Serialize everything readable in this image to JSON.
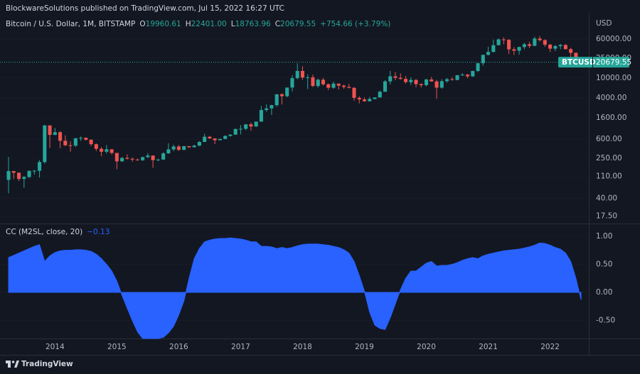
{
  "header": "BlockwareSolutions published on TradingView.com, Jul 15, 2022 16:27 UTC",
  "footer": "TradingView",
  "chart_data": [
    {
      "type": "candlestick",
      "title": "Bitcoin / U.S. Dollar, 1M, BITSTAMP",
      "legend": [
        {
          "label": "O",
          "value": "19960.61"
        },
        {
          "label": "H",
          "value": "22401.00"
        },
        {
          "label": "L",
          "value": "18763.96"
        },
        {
          "label": "C",
          "value": "20679.55"
        }
      ],
      "change": "+754.66 (+3.79%)",
      "axis_unit": "USD",
      "log_scale": true,
      "ylim": [
        12.5,
        200000
      ],
      "yticks": [
        {
          "value": 17.5,
          "label": "17.50"
        },
        {
          "value": 40,
          "label": "40.00"
        },
        {
          "value": 110,
          "label": "110.00"
        },
        {
          "value": 250,
          "label": "250.00"
        },
        {
          "value": 600,
          "label": "600.00"
        },
        {
          "value": 1600,
          "label": "1600.00"
        },
        {
          "value": 4000,
          "label": "4000.00"
        },
        {
          "value": 10000,
          "label": "10000.00"
        },
        {
          "value": 25000,
          "label": "25000.00"
        },
        {
          "value": 60000,
          "label": "60000.00"
        }
      ],
      "xlim": [
        -1.66,
        112.5
      ],
      "xticks": [
        {
          "value": 9,
          "label": "2014"
        },
        {
          "value": 21,
          "label": "2015"
        },
        {
          "value": 33,
          "label": "2016"
        },
        {
          "value": 45,
          "label": "2017"
        },
        {
          "value": 57,
          "label": "2018"
        },
        {
          "value": 69,
          "label": "2019"
        },
        {
          "value": 81,
          "label": "2020"
        },
        {
          "value": 93,
          "label": "2021"
        },
        {
          "value": 105,
          "label": "2022"
        }
      ],
      "up_color": "#26a69a",
      "down_color": "#ef5350",
      "last_price": {
        "symbol": "BTCUSD",
        "label": "20679.55",
        "value": 20679.55
      },
      "open": [
        93,
        139,
        129,
        97,
        106,
        141,
        141,
        211,
        1130,
        732,
        830,
        560,
        455,
        447,
        628,
        640,
        586,
        478,
        387,
        338,
        378,
        320,
        218,
        254,
        244,
        236,
        230,
        264,
        284,
        230,
        236,
        314,
        377,
        430,
        368,
        437,
        416,
        448,
        531,
        673,
        624,
        574,
        609,
        699,
        742,
        963,
        970,
        1190,
        1080,
        1348,
        2300,
        2480,
        2875,
        4735,
        4340,
        6450,
        9950,
        13850,
        10220,
        10330,
        6930,
        9240,
        7490,
        6390,
        7730,
        7030,
        6630,
        6370,
        4020,
        3740,
        3440,
        3810,
        4100,
        5320,
        8570,
        10820,
        10080,
        9590,
        8290,
        9150,
        7560,
        7190,
        9350,
        8540,
        6410,
        8630,
        9450,
        9140,
        11350,
        11650,
        10780,
        13790,
        19700,
        28990,
        33110,
        45140,
        58800,
        57720,
        37300,
        35040,
        41460,
        47100,
        43790,
        61300,
        56950,
        46210,
        38480,
        43190,
        45530,
        37630,
        31790,
        19960.61
      ],
      "high": [
        266,
        140,
        130,
        111,
        141,
        147,
        229,
        1163,
        1150,
        1010,
        870,
        720,
        545,
        635,
        680,
        660,
        600,
        495,
        420,
        460,
        380,
        320,
        265,
        300,
        260,
        248,
        268,
        318,
        285,
        245,
        330,
        500,
        465,
        463,
        440,
        440,
        468,
        550,
        775,
        704,
        630,
        617,
        715,
        755,
        975,
        1150,
        1200,
        1290,
        1350,
        2760,
        2990,
        2920,
        4760,
        4970,
        6470,
        11400,
        19670,
        17180,
        11780,
        11680,
        9750,
        10020,
        7760,
        8500,
        7760,
        7410,
        7670,
        6590,
        4320,
        4090,
        4200,
        4110,
        5630,
        9070,
        13880,
        13200,
        12320,
        10920,
        10370,
        9510,
        7750,
        9580,
        10500,
        9190,
        9460,
        10060,
        10380,
        11450,
        12480,
        12090,
        14100,
        19900,
        29300,
        41950,
        58350,
        61780,
        64900,
        59600,
        41330,
        42320,
        50500,
        52920,
        67000,
        69000,
        59050,
        47990,
        45820,
        48200,
        47450,
        40000,
        31990,
        22401
      ],
      "low": [
        50,
        97,
        88,
        65,
        101,
        118,
        104,
        196,
        400,
        730,
        400,
        440,
        340,
        420,
        555,
        565,
        445,
        350,
        275,
        310,
        300,
        152,
        212,
        236,
        213,
        225,
        220,
        253,
        162,
        220,
        236,
        308,
        347,
        352,
        365,
        400,
        412,
        436,
        530,
        610,
        480,
        570,
        600,
        680,
        740,
        750,
        915,
        890,
        1060,
        1345,
        2120,
        1830,
        2670,
        2970,
        4110,
        5380,
        9400,
        9200,
        6000,
        6600,
        6430,
        7050,
        5750,
        6070,
        5880,
        6100,
        6200,
        3500,
        3120,
        3350,
        3380,
        3720,
        4080,
        5320,
        7460,
        9070,
        9320,
        7730,
        7300,
        6520,
        6430,
        6850,
        8450,
        3850,
        6150,
        8120,
        8900,
        8990,
        10980,
        9880,
        10520,
        13200,
        17580,
        28130,
        32300,
        44950,
        47000,
        30000,
        28800,
        29280,
        37330,
        39600,
        43280,
        53250,
        42000,
        32930,
        34320,
        37150,
        37380,
        25400,
        17590,
        18763.96
      ],
      "close": [
        139,
        129,
        97,
        106,
        141,
        141,
        211,
        1130,
        732,
        830,
        560,
        455,
        447,
        628,
        640,
        586,
        478,
        387,
        338,
        378,
        320,
        218,
        254,
        244,
        236,
        230,
        264,
        284,
        230,
        236,
        314,
        377,
        430,
        368,
        437,
        416,
        448,
        531,
        673,
        624,
        574,
        609,
        699,
        742,
        963,
        970,
        1190,
        1080,
        1348,
        2300,
        2480,
        2875,
        4735,
        4340,
        6450,
        9950,
        13850,
        10220,
        10330,
        6930,
        9240,
        7490,
        6390,
        7730,
        7030,
        6630,
        6370,
        4020,
        3740,
        3440,
        3810,
        4100,
        5320,
        8570,
        10820,
        10080,
        9590,
        8290,
        9150,
        7560,
        7190,
        9350,
        8540,
        6410,
        8630,
        9450,
        9140,
        11350,
        11650,
        10780,
        13790,
        19700,
        28990,
        33110,
        45140,
        58800,
        57720,
        37300,
        35040,
        41460,
        47100,
        43790,
        61300,
        56950,
        46210,
        38480,
        43190,
        45530,
        37630,
        31790,
        19930,
        20679.55
      ]
    },
    {
      "type": "area",
      "title": "CC (M2SL, close, 20)",
      "last_label": "−0.13",
      "color": "#2962ff",
      "ylim": [
        -0.82,
        1.2
      ],
      "yticks": [
        {
          "value": 1,
          "label": "1.00"
        },
        {
          "value": 0.5,
          "label": "0.50"
        },
        {
          "value": 0,
          "label": "0.00"
        },
        {
          "value": -0.5,
          "label": "-0.50"
        }
      ],
      "xlim": [
        -1.66,
        112.5
      ],
      "values": [
        0.62,
        0.66,
        0.7,
        0.74,
        0.78,
        0.82,
        0.85,
        0.55,
        0.65,
        0.71,
        0.74,
        0.75,
        0.75,
        0.76,
        0.76,
        0.75,
        0.73,
        0.68,
        0.6,
        0.5,
        0.38,
        0.2,
        -0.05,
        -0.28,
        -0.5,
        -0.7,
        -0.82,
        -0.82,
        -0.82,
        -0.82,
        -0.8,
        -0.72,
        -0.6,
        -0.4,
        -0.15,
        0.25,
        0.6,
        0.78,
        0.9,
        0.93,
        0.95,
        0.96,
        0.96,
        0.97,
        0.96,
        0.95,
        0.93,
        0.9,
        0.9,
        0.82,
        0.82,
        0.81,
        0.78,
        0.8,
        0.78,
        0.8,
        0.83,
        0.85,
        0.86,
        0.86,
        0.86,
        0.85,
        0.84,
        0.82,
        0.8,
        0.76,
        0.7,
        0.55,
        0.3,
        0.02,
        -0.35,
        -0.58,
        -0.64,
        -0.66,
        -0.45,
        -0.2,
        0.05,
        0.25,
        0.38,
        0.38,
        0.45,
        0.52,
        0.55,
        0.47,
        0.48,
        0.48,
        0.5,
        0.53,
        0.57,
        0.6,
        0.62,
        0.6,
        0.65,
        0.68,
        0.7,
        0.72,
        0.74,
        0.75,
        0.76,
        0.77,
        0.79,
        0.81,
        0.84,
        0.88,
        0.87,
        0.84,
        0.8,
        0.77,
        0.7,
        0.55,
        0.25,
        -0.13
      ]
    }
  ]
}
